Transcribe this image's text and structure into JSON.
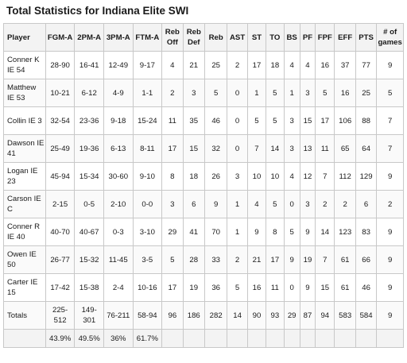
{
  "title": "Total Statistics for Indiana Elite SWI",
  "headers": [
    "Player",
    "FGM-A",
    "2PM-A",
    "3PM-A",
    "FTM-A",
    "Reb Off",
    "Reb Def",
    "Reb",
    "AST",
    "ST",
    "TO",
    "BS",
    "PF",
    "FPF",
    "EFF",
    "PTS",
    "# of games"
  ],
  "rows": [
    [
      "Conner K IE 54",
      "28-90",
      "16-41",
      "12-49",
      "9-17",
      "4",
      "21",
      "25",
      "2",
      "17",
      "18",
      "4",
      "4",
      "16",
      "37",
      "77",
      "9"
    ],
    [
      "Matthew IE 53",
      "10-21",
      "6-12",
      "4-9",
      "1-1",
      "2",
      "3",
      "5",
      "0",
      "1",
      "5",
      "1",
      "3",
      "5",
      "16",
      "25",
      "5"
    ],
    [
      "Collin IE 3",
      "32-54",
      "23-36",
      "9-18",
      "15-24",
      "11",
      "35",
      "46",
      "0",
      "5",
      "5",
      "3",
      "15",
      "17",
      "106",
      "88",
      "7"
    ],
    [
      "Dawson IE 41",
      "25-49",
      "19-36",
      "6-13",
      "8-11",
      "17",
      "15",
      "32",
      "0",
      "7",
      "14",
      "3",
      "13",
      "11",
      "65",
      "64",
      "7"
    ],
    [
      "Logan IE 23",
      "45-94",
      "15-34",
      "30-60",
      "9-10",
      "8",
      "18",
      "26",
      "3",
      "10",
      "10",
      "4",
      "12",
      "7",
      "112",
      "129",
      "9"
    ],
    [
      "Carson IE C",
      "2-15",
      "0-5",
      "2-10",
      "0-0",
      "3",
      "6",
      "9",
      "1",
      "4",
      "5",
      "0",
      "3",
      "2",
      "2",
      "6",
      "2"
    ],
    [
      "Conner R IE 40",
      "40-70",
      "40-67",
      "0-3",
      "3-10",
      "29",
      "41",
      "70",
      "1",
      "9",
      "8",
      "5",
      "9",
      "14",
      "123",
      "83",
      "9"
    ],
    [
      "Owen IE 50",
      "26-77",
      "15-32",
      "11-45",
      "3-5",
      "5",
      "28",
      "33",
      "2",
      "21",
      "17",
      "9",
      "19",
      "7",
      "61",
      "66",
      "9"
    ],
    [
      "Carter IE 15",
      "17-42",
      "15-38",
      "2-4",
      "10-16",
      "17",
      "19",
      "36",
      "5",
      "16",
      "11",
      "0",
      "9",
      "15",
      "61",
      "46",
      "9"
    ],
    [
      "Totals",
      "225-512",
      "149-301",
      "76-211",
      "58-94",
      "96",
      "186",
      "282",
      "14",
      "90",
      "93",
      "29",
      "87",
      "94",
      "583",
      "584",
      "9"
    ]
  ],
  "percentages": [
    "",
    "43.9%",
    "49.5%",
    "36%",
    "61.7%",
    "",
    "",
    "",
    "",
    "",
    "",
    "",
    "",
    "",
    "",
    "",
    ""
  ]
}
